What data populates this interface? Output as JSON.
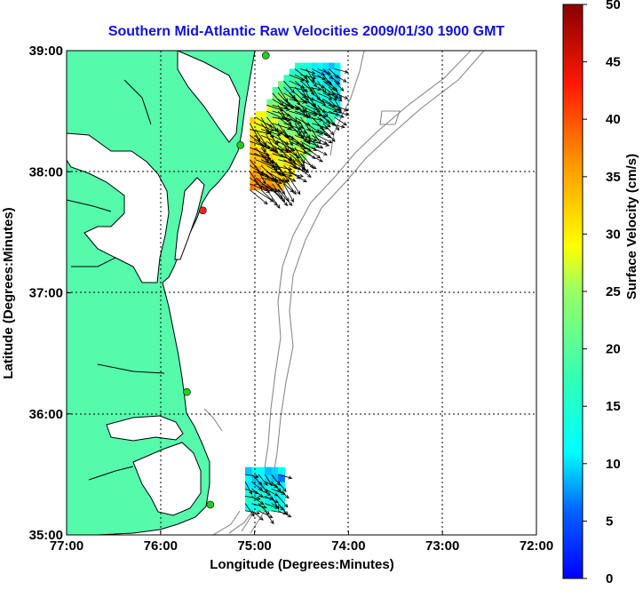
{
  "title": "Southern Mid-Atlantic Raw Velocities 2009/01/30 1900 GMT",
  "x_axis": {
    "label": "Longitude (Degrees:Minutes)",
    "ticks": [
      "77:00",
      "76:00",
      "75:00",
      "74:00",
      "73:00",
      "72:00"
    ]
  },
  "y_axis": {
    "label": "Latitude (Degrees:Minutes)",
    "ticks": [
      "35:00",
      "36:00",
      "37:00",
      "38:00",
      "39:00"
    ]
  },
  "colorbar": {
    "label": "Surface Velocity (cm/s)",
    "ticks": [
      "0",
      "5",
      "10",
      "15",
      "20",
      "25",
      "30",
      "35",
      "40",
      "45",
      "50"
    ],
    "range": [
      0,
      50
    ]
  },
  "colors": {
    "land": "#55fbab",
    "water": "#ffffff",
    "title": "#1010e0",
    "bathymetry": "#8a8a8a"
  },
  "map_extent": {
    "lon": [
      -77,
      -72
    ],
    "lat": [
      35,
      39
    ]
  },
  "stations": [
    {
      "lon": -74.88,
      "lat": 38.96,
      "color": "#22cc22"
    },
    {
      "lon": -75.15,
      "lat": 38.22,
      "color": "#22cc22"
    },
    {
      "lon": -75.55,
      "lat": 37.68,
      "color": "#ee2222"
    },
    {
      "lon": -75.72,
      "lat": 36.18,
      "color": "#22cc22"
    },
    {
      "lon": -75.47,
      "lat": 35.25,
      "color": "#22cc22"
    }
  ],
  "velocity_field": {
    "north_region": {
      "lon_range": [
        -75.05,
        -74.1
      ],
      "lat_range": [
        37.85,
        38.85
      ],
      "speed_range_cm_s": [
        8,
        38
      ]
    },
    "south_region": {
      "lon_range": [
        -75.1,
        -74.75
      ],
      "lat_range": [
        35.2,
        35.55
      ],
      "speed_range_cm_s": [
        8,
        15
      ]
    }
  }
}
